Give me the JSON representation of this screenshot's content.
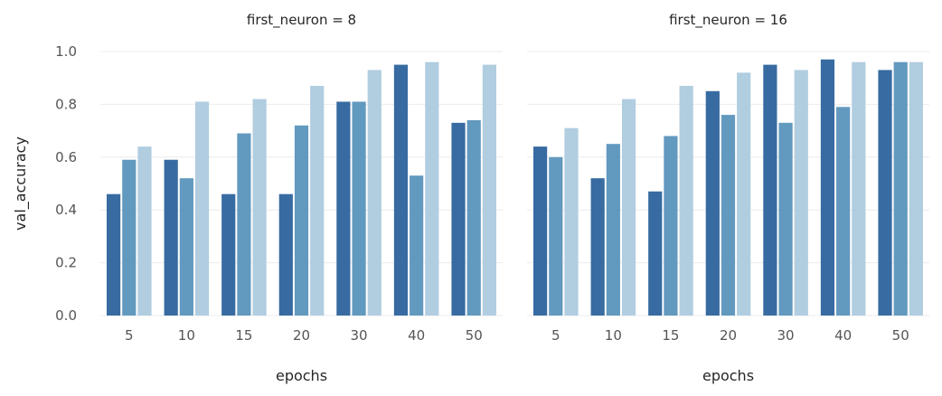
{
  "chart_data": {
    "type": "bar",
    "ylabel": "val_accuracy",
    "xlabel": "epochs",
    "ylim": [
      0,
      1.0
    ],
    "yticks": [
      "0.0",
      "0.2",
      "0.4",
      "0.6",
      "0.8",
      "1.0"
    ],
    "grid": "horizontal",
    "colors": [
      "#376ba1",
      "#6299bf",
      "#b1cde0"
    ],
    "categories": [
      "5",
      "10",
      "15",
      "20",
      "30",
      "40",
      "50"
    ],
    "panels": [
      {
        "title": "first_neuron = 8",
        "series": [
          {
            "values": [
              0.46,
              0.59,
              0.46,
              0.46,
              0.81,
              0.95,
              0.73
            ]
          },
          {
            "values": [
              0.59,
              0.52,
              0.69,
              0.72,
              0.81,
              0.53,
              0.74
            ]
          },
          {
            "values": [
              0.64,
              0.81,
              0.82,
              0.87,
              0.93,
              0.96,
              0.95
            ]
          }
        ]
      },
      {
        "title": "first_neuron = 16",
        "series": [
          {
            "values": [
              0.64,
              0.52,
              0.47,
              0.85,
              0.95,
              0.97,
              0.93
            ]
          },
          {
            "values": [
              0.6,
              0.65,
              0.68,
              0.76,
              0.73,
              0.79,
              0.96
            ]
          },
          {
            "values": [
              0.71,
              0.82,
              0.87,
              0.92,
              0.93,
              0.96,
              0.96
            ]
          }
        ]
      }
    ]
  }
}
